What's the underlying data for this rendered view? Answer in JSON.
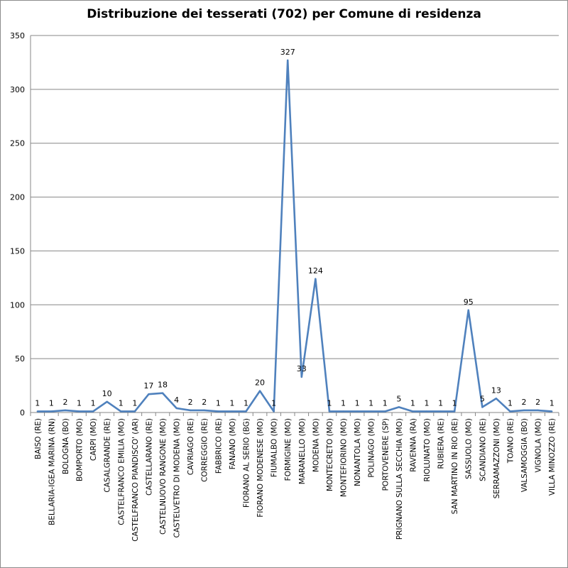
{
  "chart_data": {
    "type": "line",
    "title": "Distribuzione dei tesserati (702) per Comune di residenza",
    "xlabel": "",
    "ylabel": "",
    "ylim": [
      0,
      350
    ],
    "yticks": [
      0,
      50,
      100,
      150,
      200,
      250,
      300,
      350
    ],
    "grid": "horizontal",
    "legend": "none",
    "line_color": "#4f81bd",
    "categories": [
      "BAISO (RE)",
      "BELLARIA-IGEA MARINA (RN)",
      "BOLOGNA (BO)",
      "BOMPORTO (MO)",
      "CARPI (MO)",
      "CASALGRANDE (RE)",
      "CASTELFRANCO EMILIA (MO)",
      "CASTELFRANCO PIANDISCO' (AR)",
      "CASTELLARANO (RE)",
      "CASTELNUOVO RANGONE (MO)",
      "CASTELVETRO DI MODENA (MO)",
      "CAVRIAGO (RE)",
      "CORREGGIO (RE)",
      "FABBRICO (RE)",
      "FANANO (MO)",
      "FIORANO AL SERIO (BG)",
      "FIORANO MODENESE (MO)",
      "FIUMALBO (MO)",
      "FORMIGINE (MO)",
      "MARANELLO (MO)",
      "MODENA (MO)",
      "MONTECRETO (MO)",
      "MONTEFIORINO (MO)",
      "NONANTOLA (MO)",
      "POLINAGO (MO)",
      "PORTOVENERE (SP)",
      "PRIGNANO SULLA SECCHIA (MO)",
      "RAVENNA (RA)",
      "RIOLUNATO (MO)",
      "RUBIERA (RE)",
      "SAN MARTINO IN RIO (RE)",
      "SASSUOLO (MO)",
      "SCANDIANO (RE)",
      "SERRAMAZZONI (MO)",
      "TOANO (RE)",
      "VALSAMOGGIA (BO)",
      "VIGNOLA (MO)",
      "VILLA MINOZZO (RE)"
    ],
    "values": [
      1,
      1,
      2,
      1,
      1,
      10,
      1,
      1,
      17,
      18,
      4,
      2,
      2,
      1,
      1,
      1,
      20,
      1,
      327,
      33,
      124,
      1,
      1,
      1,
      1,
      1,
      5,
      1,
      1,
      1,
      1,
      95,
      5,
      13,
      1,
      2,
      2,
      1
    ]
  }
}
